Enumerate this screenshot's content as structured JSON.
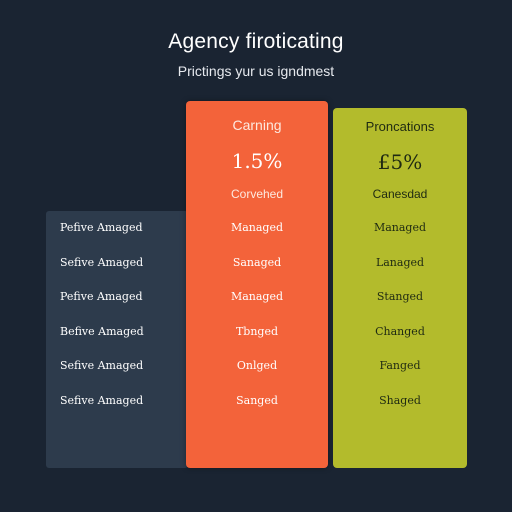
{
  "header": {
    "title": "Agency firoticating",
    "subtitle": "Prictings yur us igndmest"
  },
  "plans": [
    {
      "name": "Carning",
      "price": "1.5%",
      "caption": "Corvehed",
      "color": "#f3633a"
    },
    {
      "name": "Proncations",
      "price": "£5%",
      "caption": "Canesdad",
      "color": "#b3bb2c"
    }
  ],
  "rows": [
    {
      "label": "Pefive Amaged",
      "plan1": "Managed",
      "plan2": "Managed"
    },
    {
      "label": "Sefive Amaged",
      "plan1": "Sanaged",
      "plan2": "Lanaged"
    },
    {
      "label": "Pefive Amaged",
      "plan1": "Managed",
      "plan2": "Stanged"
    },
    {
      "label": "Befive Amaged",
      "plan1": "Tbnged",
      "plan2": "Changed"
    },
    {
      "label": "Sefive Amaged",
      "plan1": "Onlged",
      "plan2": "Fanged"
    },
    {
      "label": "Sefive Amaged",
      "plan1": "Sanged",
      "plan2": "Shaged"
    }
  ],
  "colors": {
    "background": "#1a2432",
    "label_column": "#2d3b4c"
  }
}
